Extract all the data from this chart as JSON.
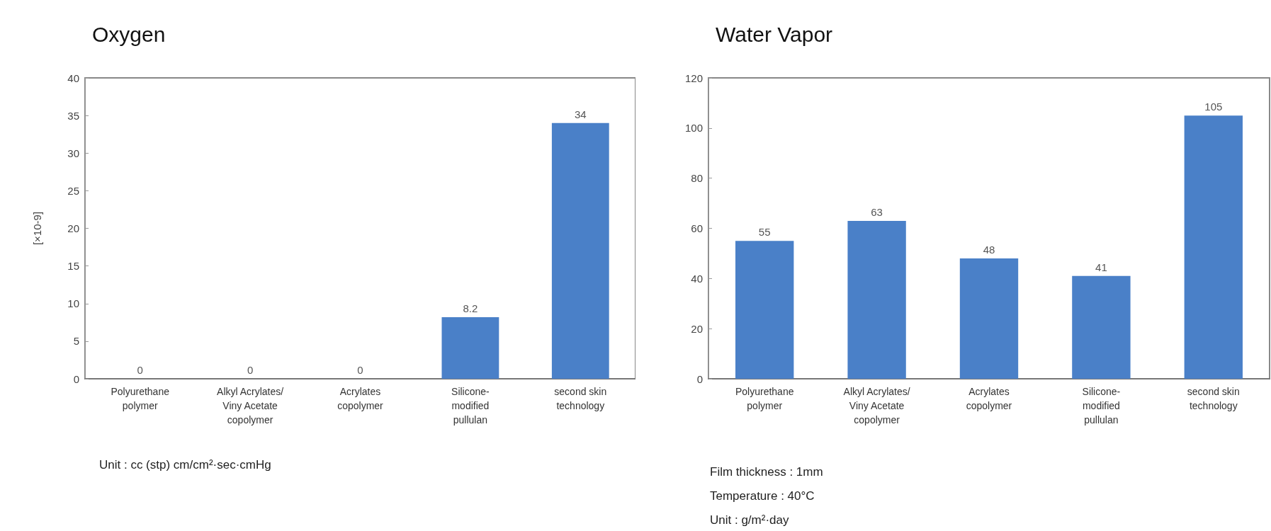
{
  "chart_data": [
    {
      "type": "bar",
      "title": "Oxygen",
      "ylabel": "[×10-9]",
      "categories": [
        "Polyurethane\npolymer",
        "Alkyl Acrylates/\nViny Acetate\ncopolymer",
        "Acrylates\ncopolymer",
        "Silicone-\nmodified\npullulan",
        "second skin\ntechnology"
      ],
      "values": [
        0,
        0,
        0,
        8.2,
        34
      ],
      "color": "#4a80c8",
      "ylim": [
        0,
        40
      ],
      "yticks": [
        0,
        5,
        10,
        15,
        20,
        25,
        30,
        35,
        40
      ],
      "data_labels": true,
      "grid": false,
      "annotations": [
        "Unit : cc (stp) cm/cm²·sec·cmHg"
      ]
    },
    {
      "type": "bar",
      "title": "Water Vapor",
      "categories": [
        "Polyurethane\npolymer",
        "Alkyl Acrylates/\nViny Acetate\ncopolymer",
        "Acrylates\ncopolymer",
        "Silicone-\nmodified\npullulan",
        "second skin\ntechnology"
      ],
      "values": [
        55,
        63,
        48,
        41,
        105
      ],
      "color": "#4a80c8",
      "ylim": [
        0,
        120
      ],
      "yticks": [
        0,
        20,
        40,
        60,
        80,
        100,
        120
      ],
      "data_labels": true,
      "grid": false,
      "annotations": [
        "Film thickness : 1mm",
        "Temperature : 40°C",
        "Unit : g/m²·day"
      ]
    }
  ]
}
